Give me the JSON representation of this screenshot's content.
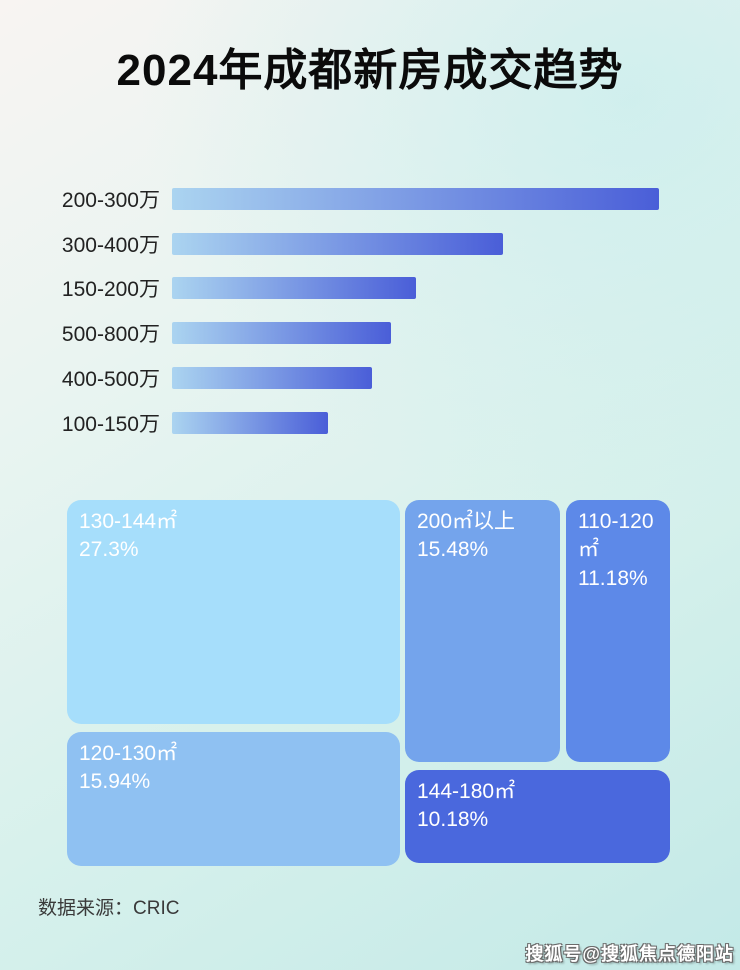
{
  "page": {
    "title": "2024年成都新房成交趋势",
    "source": "数据来源：CRIC",
    "watermark": "搜狐号@搜狐焦点德阳站"
  },
  "colors": {
    "background_start": "#f8f4f2",
    "background_end": "#c3e9e7",
    "bar_gradient_start": "#abd4f0",
    "bar_gradient_end": "#4a5ed8",
    "title_text": "#0b0b0b",
    "cell_text": "#ffffff"
  },
  "chart_data": [
    {
      "type": "bar",
      "orientation": "horizontal",
      "categories": [
        "200-300万",
        "300-400万",
        "150-200万",
        "500-800万",
        "400-500万",
        "100-150万"
      ],
      "values": [
        100,
        68,
        50,
        45,
        41,
        32
      ],
      "values_note": "bars carry no numeric labels; values are relative lengths as % of the longest bar",
      "xlabel": "",
      "ylabel": "",
      "grid": false,
      "legend": "none"
    },
    {
      "type": "treemap",
      "cells": [
        {
          "label": "130-144㎡",
          "value": "27.3%",
          "color": "#a6defb"
        },
        {
          "label": "200㎡以上",
          "value": "15.48%",
          "color": "#74a4ec"
        },
        {
          "label": "110-120㎡",
          "value": "11.18%",
          "color": "#5d89e8"
        },
        {
          "label": "120-130㎡",
          "value": "15.94%",
          "color": "#8fc1f2"
        },
        {
          "label": "144-180㎡",
          "value": "10.18%",
          "color": "#4a68dd"
        }
      ]
    }
  ]
}
